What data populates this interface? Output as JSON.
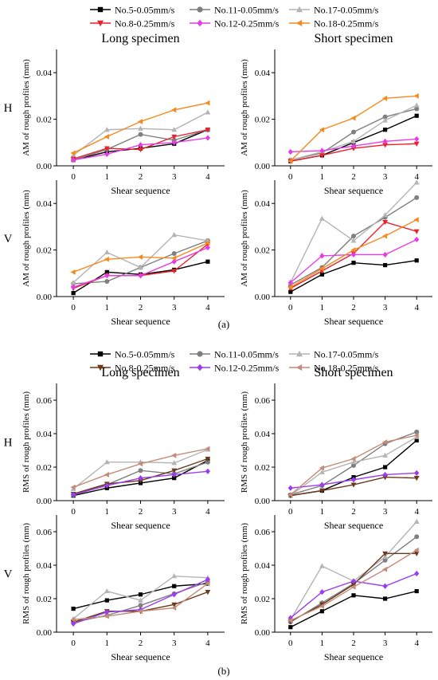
{
  "chart_data": [
    {
      "type": "line",
      "group": "a",
      "row_label": "H",
      "subplot_title": "Long specimen",
      "xlabel": "Shear sequence",
      "ylabel": "AM of rough profiles (mm)",
      "x": [
        0,
        1,
        2,
        3,
        4
      ],
      "xticks": [
        "0",
        "1",
        "2",
        "3",
        "4"
      ],
      "ylim": [
        0,
        0.05
      ],
      "yticks": [
        "0.00",
        "0.02",
        "0.04"
      ],
      "ytick_values": [
        0,
        0.02,
        0.04
      ],
      "series": [
        {
          "name": "No.5-0.05mm/s",
          "values": [
            0.0025,
            0.006,
            0.0075,
            0.0095,
            0.0155
          ]
        },
        {
          "name": "No.11-0.05mm/s",
          "values": [
            0.0025,
            0.007,
            0.0135,
            0.011,
            0.0155
          ]
        },
        {
          "name": "No.17-0.05mm/s",
          "values": [
            0.0045,
            0.0155,
            0.016,
            0.0155,
            0.023
          ]
        },
        {
          "name": "No.8-0.25mm/s",
          "values": [
            0.003,
            0.0075,
            0.007,
            0.0125,
            0.0155
          ]
        },
        {
          "name": "No.12-0.25mm/s",
          "values": [
            0.0025,
            0.005,
            0.009,
            0.01,
            0.012
          ]
        },
        {
          "name": "No.18-0.25mm/s",
          "values": [
            0.0055,
            0.0125,
            0.019,
            0.024,
            0.027
          ]
        }
      ]
    },
    {
      "type": "line",
      "group": "a",
      "row_label": "",
      "subplot_title": "Short specimen",
      "xlabel": "Shear sequence",
      "ylabel": "AM of rough profiles (mm)",
      "x": [
        0,
        1,
        2,
        3,
        4
      ],
      "xticks": [
        "0",
        "1",
        "2",
        "3",
        "4"
      ],
      "ylim": [
        0,
        0.05
      ],
      "yticks": [
        "0.00",
        "0.02",
        "0.04"
      ],
      "ytick_values": [
        0,
        0.02,
        0.04
      ],
      "series": [
        {
          "name": "No.5-0.05mm/s",
          "values": [
            0.002,
            0.0045,
            0.01,
            0.0155,
            0.0215
          ]
        },
        {
          "name": "No.11-0.05mm/s",
          "values": [
            0.0025,
            0.0055,
            0.0145,
            0.021,
            0.0245
          ]
        },
        {
          "name": "No.17-0.05mm/s",
          "values": [
            0.0025,
            0.006,
            0.0105,
            0.0195,
            0.026
          ]
        },
        {
          "name": "No.8-0.25mm/s",
          "values": [
            0.002,
            0.0045,
            0.0075,
            0.009,
            0.0095
          ]
        },
        {
          "name": "No.12-0.25mm/s",
          "values": [
            0.006,
            0.0065,
            0.0085,
            0.0105,
            0.0115
          ]
        },
        {
          "name": "No.18-0.25mm/s",
          "values": [
            0.002,
            0.0155,
            0.0205,
            0.029,
            0.03
          ]
        }
      ]
    },
    {
      "type": "line",
      "group": "a",
      "row_label": "V",
      "subplot_title": "",
      "xlabel": "Shear sequence",
      "ylabel": "AM of rough profiles (mm)",
      "x": [
        0,
        1,
        2,
        3,
        4
      ],
      "xticks": [
        "0",
        "1",
        "2",
        "3",
        "4"
      ],
      "ylim": [
        0,
        0.05
      ],
      "yticks": [
        "0.00",
        "0.02",
        "0.04"
      ],
      "ytick_values": [
        0,
        0.02,
        0.04
      ],
      "series": [
        {
          "name": "No.5-0.05mm/s",
          "values": [
            0.0015,
            0.0105,
            0.0095,
            0.0115,
            0.015
          ]
        },
        {
          "name": "No.11-0.05mm/s",
          "values": [
            0.0055,
            0.0065,
            0.0125,
            0.0185,
            0.024
          ]
        },
        {
          "name": "No.17-0.05mm/s",
          "values": [
            0.006,
            0.019,
            0.0125,
            0.0265,
            0.024
          ]
        },
        {
          "name": "No.8-0.25mm/s",
          "values": [
            0.0035,
            0.009,
            0.009,
            0.011,
            0.0225
          ]
        },
        {
          "name": "No.12-0.25mm/s",
          "values": [
            0.004,
            0.009,
            0.009,
            0.015,
            0.021
          ]
        },
        {
          "name": "No.18-0.25mm/s",
          "values": [
            0.0105,
            0.016,
            0.017,
            0.0165,
            0.023
          ]
        }
      ]
    },
    {
      "type": "line",
      "group": "a",
      "row_label": "",
      "subplot_title": "",
      "xlabel": "Shear sequence",
      "ylabel": "AM of rough profiles (mm)",
      "x": [
        0,
        1,
        2,
        3,
        4
      ],
      "xticks": [
        "0",
        "1",
        "2",
        "3",
        "4"
      ],
      "ylim": [
        0,
        0.05
      ],
      "yticks": [
        "0.00",
        "0.02",
        "0.04"
      ],
      "ytick_values": [
        0,
        0.02,
        0.04
      ],
      "series": [
        {
          "name": "No.5-0.05mm/s",
          "values": [
            0.002,
            0.0095,
            0.0145,
            0.0135,
            0.0155
          ]
        },
        {
          "name": "No.11-0.05mm/s",
          "values": [
            0.005,
            0.0125,
            0.026,
            0.034,
            0.0425
          ]
        },
        {
          "name": "No.17-0.05mm/s",
          "values": [
            0.006,
            0.0335,
            0.024,
            0.035,
            0.049
          ]
        },
        {
          "name": "No.8-0.25mm/s",
          "values": [
            0.0035,
            0.011,
            0.0185,
            0.032,
            0.028
          ]
        },
        {
          "name": "No.12-0.25mm/s",
          "values": [
            0.006,
            0.0175,
            0.018,
            0.018,
            0.0245
          ]
        },
        {
          "name": "No.18-0.25mm/s",
          "values": [
            0.004,
            0.012,
            0.02,
            0.026,
            0.033
          ]
        }
      ]
    },
    {
      "type": "line",
      "group": "b",
      "row_label": "H",
      "subplot_title": "Long specimen",
      "xlabel": "Shear sequence",
      "ylabel": "RMS of rough profiles (mm)",
      "x": [
        0,
        1,
        2,
        3,
        4
      ],
      "xticks": [
        "0",
        "1",
        "2",
        "3",
        "4"
      ],
      "ylim": [
        0,
        0.07
      ],
      "yticks": [
        "0.00",
        "0.02",
        "0.04",
        "0.06"
      ],
      "ytick_values": [
        0,
        0.02,
        0.04,
        0.06
      ],
      "series": [
        {
          "name": "No.5-0.05mm/s",
          "values": [
            0.003,
            0.0075,
            0.0105,
            0.0135,
            0.024
          ]
        },
        {
          "name": "No.11-0.05mm/s",
          "values": [
            0.0035,
            0.0095,
            0.018,
            0.016,
            0.023
          ]
        },
        {
          "name": "No.17-0.05mm/s",
          "values": [
            0.007,
            0.023,
            0.023,
            0.0225,
            0.0305
          ]
        },
        {
          "name": "No.8-0.25mm/s",
          "values": [
            0.004,
            0.01,
            0.012,
            0.018,
            0.025
          ]
        },
        {
          "name": "No.12-0.25mm/s",
          "values": [
            0.0035,
            0.009,
            0.0135,
            0.0155,
            0.0175
          ]
        },
        {
          "name": "No.18-0.25mm/s",
          "values": [
            0.008,
            0.0155,
            0.022,
            0.027,
            0.031
          ]
        }
      ]
    },
    {
      "type": "line",
      "group": "b",
      "row_label": "",
      "subplot_title": "Short specimen",
      "xlabel": "Shear sequence",
      "ylabel": "RMS of rough profiles (mm)",
      "x": [
        0,
        1,
        2,
        3,
        4
      ],
      "xticks": [
        "0",
        "1",
        "2",
        "3",
        "4"
      ],
      "ylim": [
        0,
        0.07
      ],
      "yticks": [
        "0.00",
        "0.02",
        "0.04",
        "0.06"
      ],
      "ytick_values": [
        0,
        0.02,
        0.04,
        0.06
      ],
      "series": [
        {
          "name": "No.5-0.05mm/s",
          "values": [
            0.003,
            0.006,
            0.014,
            0.02,
            0.036
          ]
        },
        {
          "name": "No.11-0.05mm/s",
          "values": [
            0.0035,
            0.009,
            0.021,
            0.034,
            0.041
          ]
        },
        {
          "name": "No.17-0.05mm/s",
          "values": [
            0.003,
            0.017,
            0.023,
            0.027,
            0.038
          ]
        },
        {
          "name": "No.8-0.25mm/s",
          "values": [
            0.003,
            0.006,
            0.0095,
            0.014,
            0.0135
          ]
        },
        {
          "name": "No.12-0.25mm/s",
          "values": [
            0.0075,
            0.0095,
            0.0125,
            0.0155,
            0.0165
          ]
        },
        {
          "name": "No.18-0.25mm/s",
          "values": [
            0.0035,
            0.0195,
            0.025,
            0.035,
            0.039
          ]
        }
      ]
    },
    {
      "type": "line",
      "group": "b",
      "row_label": "V",
      "subplot_title": "",
      "xlabel": "Shear sequence",
      "ylabel": "RMS of rough profiles (mm)",
      "x": [
        0,
        1,
        2,
        3,
        4
      ],
      "xticks": [
        "0",
        "1",
        "2",
        "3",
        "4"
      ],
      "ylim": [
        0,
        0.07
      ],
      "yticks": [
        "0.00",
        "0.02",
        "0.04",
        "0.06"
      ],
      "ytick_values": [
        0,
        0.02,
        0.04,
        0.06
      ],
      "series": [
        {
          "name": "No.5-0.05mm/s",
          "values": [
            0.014,
            0.019,
            0.0225,
            0.0275,
            0.029
          ]
        },
        {
          "name": "No.11-0.05mm/s",
          "values": [
            0.006,
            0.01,
            0.016,
            0.023,
            0.03
          ]
        },
        {
          "name": "No.17-0.05mm/s",
          "values": [
            0.008,
            0.0245,
            0.019,
            0.0335,
            0.0325
          ]
        },
        {
          "name": "No.8-0.25mm/s",
          "values": [
            0.006,
            0.0125,
            0.0125,
            0.0165,
            0.024
          ]
        },
        {
          "name": "No.12-0.25mm/s",
          "values": [
            0.005,
            0.012,
            0.0135,
            0.0225,
            0.0315
          ]
        },
        {
          "name": "No.18-0.25mm/s",
          "values": [
            0.0075,
            0.0095,
            0.0125,
            0.0145,
            0.029
          ]
        }
      ]
    },
    {
      "type": "line",
      "group": "b",
      "row_label": "",
      "subplot_title": "",
      "xlabel": "Shear sequence",
      "ylabel": "RMS of rough profiles (mm)",
      "x": [
        0,
        1,
        2,
        3,
        4
      ],
      "xticks": [
        "0",
        "1",
        "2",
        "3",
        "4"
      ],
      "ylim": [
        0,
        0.07
      ],
      "yticks": [
        "0.00",
        "0.02",
        "0.04",
        "0.06"
      ],
      "ytick_values": [
        0,
        0.02,
        0.04,
        0.06
      ],
      "series": [
        {
          "name": "No.5-0.05mm/s",
          "values": [
            0.003,
            0.0125,
            0.022,
            0.02,
            0.0245
          ]
        },
        {
          "name": "No.11-0.05mm/s",
          "values": [
            0.006,
            0.0175,
            0.029,
            0.043,
            0.057
          ]
        },
        {
          "name": "No.17-0.05mm/s",
          "values": [
            0.0075,
            0.0395,
            0.0305,
            0.045,
            0.066
          ]
        },
        {
          "name": "No.8-0.25mm/s",
          "values": [
            0.0065,
            0.0165,
            0.0285,
            0.047,
            0.047
          ]
        },
        {
          "name": "No.12-0.25mm/s",
          "values": [
            0.0085,
            0.024,
            0.0305,
            0.0275,
            0.035
          ]
        },
        {
          "name": "No.18-0.25mm/s",
          "values": [
            0.007,
            0.0155,
            0.027,
            0.0375,
            0.049
          ]
        }
      ]
    }
  ],
  "legends": {
    "a": {
      "entries": [
        {
          "name": "No.5-0.05mm/s",
          "color": "#000000",
          "marker": "square"
        },
        {
          "name": "No.11-0.05mm/s",
          "color": "#7f7f7f",
          "marker": "circle"
        },
        {
          "name": "No.17-0.05mm/s",
          "color": "#b4b4b4",
          "marker": "triangle-up"
        },
        {
          "name": "No.8-0.25mm/s",
          "color": "#e8212b",
          "marker": "triangle-down"
        },
        {
          "name": "No.12-0.25mm/s",
          "color": "#e63ce6",
          "marker": "diamond"
        },
        {
          "name": "No.18-0.25mm/s",
          "color": "#f58a1f",
          "marker": "triangle-left"
        }
      ]
    },
    "b": {
      "entries": [
        {
          "name": "No.5-0.05mm/s",
          "color": "#000000",
          "marker": "square"
        },
        {
          "name": "No.11-0.05mm/s",
          "color": "#7f7f7f",
          "marker": "circle"
        },
        {
          "name": "No.17-0.05mm/s",
          "color": "#b4b4b4",
          "marker": "triangle-up"
        },
        {
          "name": "No.8-0.25mm/s",
          "color": "#6b3a1a",
          "marker": "triangle-down"
        },
        {
          "name": "No.12-0.25mm/s",
          "color": "#9b3cf0",
          "marker": "diamond"
        },
        {
          "name": "No.18-0.25mm/s",
          "color": "#c48c78",
          "marker": "triangle-left"
        }
      ]
    }
  },
  "captions": {
    "a": "(a)",
    "b": "(b)"
  }
}
